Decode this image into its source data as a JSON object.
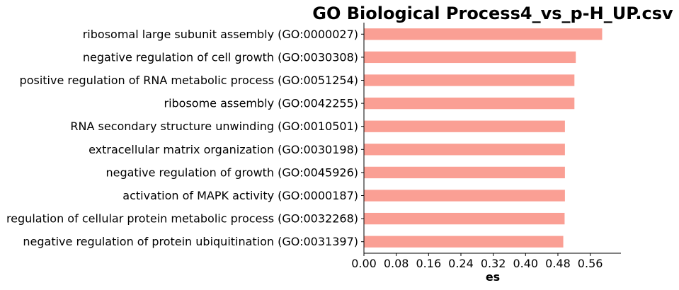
{
  "chart_data": {
    "type": "bar",
    "orientation": "horizontal",
    "title": "GO Biological Process4_vs_p-H_UP.csv",
    "xlabel": "es",
    "ylabel": "",
    "categories": [
      "ribosomal large subunit assembly (GO:0000027)",
      "negative regulation of cell growth (GO:0030308)",
      "positive regulation of RNA metabolic process (GO:0051254)",
      "ribosome assembly (GO:0042255)",
      "RNA secondary structure unwinding (GO:0010501)",
      "extracellular matrix organization (GO:0030198)",
      "negative regulation of growth (GO:0045926)",
      "activation of MAPK activity (GO:0000187)",
      "regulation of cellular protein metabolic process (GO:0032268)",
      "negative regulation of protein ubiquitination (GO:0031397)"
    ],
    "values": [
      0.5895,
      0.5243,
      0.5209,
      0.5209,
      0.4974,
      0.4974,
      0.4974,
      0.4974,
      0.4966,
      0.4933
    ],
    "xlim": [
      0,
      0.636
    ],
    "xticks": [
      "0.00",
      "0.08",
      "0.16",
      "0.24",
      "0.32",
      "0.40",
      "0.48",
      "0.56"
    ],
    "xtick_values": [
      0,
      0.08,
      0.16,
      0.24,
      0.32,
      0.4,
      0.48,
      0.56
    ],
    "grid": false,
    "legend": "none",
    "bar_color": "#fa9f94"
  }
}
